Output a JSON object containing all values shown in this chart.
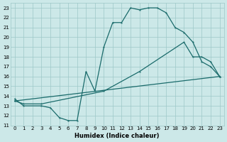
{
  "xlabel": "Humidex (Indice chaleur)",
  "xlim": [
    -0.5,
    23.5
  ],
  "ylim": [
    11,
    23.5
  ],
  "xticks": [
    0,
    1,
    2,
    3,
    4,
    5,
    6,
    7,
    8,
    9,
    10,
    11,
    12,
    13,
    14,
    15,
    16,
    17,
    18,
    19,
    20,
    21,
    22,
    23
  ],
  "yticks": [
    11,
    12,
    13,
    14,
    15,
    16,
    17,
    18,
    19,
    20,
    21,
    22,
    23
  ],
  "bg_color": "#cce8e8",
  "grid_color": "#9ec8c8",
  "line_color": "#1a6b6b",
  "line1_x": [
    0,
    1,
    3,
    4,
    5,
    6,
    7,
    8,
    9,
    10,
    11,
    12,
    13,
    14,
    15,
    16,
    17,
    18,
    19,
    20,
    21,
    22,
    23
  ],
  "line1_y": [
    13.7,
    13.0,
    13.0,
    12.8,
    11.8,
    11.5,
    11.5,
    16.5,
    14.5,
    19.0,
    21.5,
    21.5,
    23.0,
    22.8,
    23.0,
    23.0,
    22.5,
    21.0,
    20.5,
    19.5,
    17.5,
    17.0,
    16.0
  ],
  "line2_x": [
    0,
    1,
    3,
    10,
    14,
    19,
    20,
    21,
    22,
    23
  ],
  "line2_y": [
    13.5,
    13.2,
    13.2,
    14.5,
    16.5,
    19.5,
    18.0,
    18.0,
    17.5,
    16.0
  ],
  "line3_x": [
    0,
    23
  ],
  "line3_y": [
    13.5,
    16.0
  ]
}
